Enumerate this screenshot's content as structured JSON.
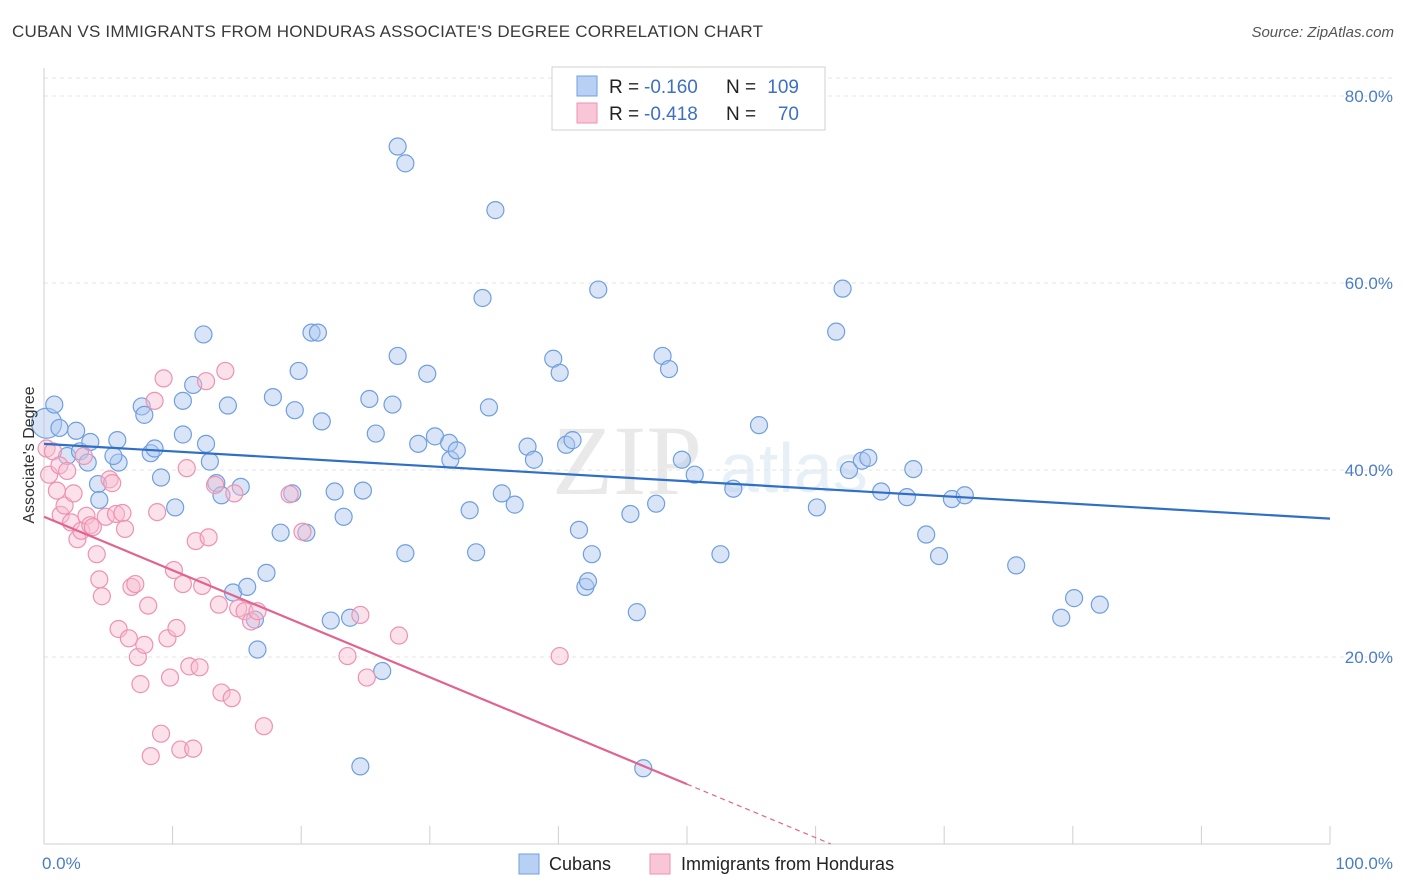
{
  "header": {
    "title": "CUBAN VS IMMIGRANTS FROM HONDURAS ASSOCIATE'S DEGREE CORRELATION CHART",
    "source": "Source: ZipAtlas.com"
  },
  "watermark": {
    "zip": "ZIP",
    "atlas": "atlas"
  },
  "legend": {
    "r_label": "R =",
    "n_label": "N =",
    "rows": [
      {
        "r": "-0.160",
        "n": "109"
      },
      {
        "r": "-0.418",
        "n": "70"
      }
    ]
  },
  "chart_data": {
    "type": "scatter",
    "title": "CUBAN VS IMMIGRANTS FROM HONDURAS ASSOCIATE'S DEGREE CORRELATION CHART",
    "ylabel": "Associate's Degree",
    "xlabel": "",
    "xlim": [
      0,
      100
    ],
    "ylim": [
      0,
      83
    ],
    "x_tick_labels": [
      "0.0%",
      "100.0%"
    ],
    "y_ticks": [
      20,
      40,
      60,
      80
    ],
    "y_tick_labels": [
      "20.0%",
      "40.0%",
      "60.0%",
      "80.0%"
    ],
    "grid": true,
    "legend_position": "top-center",
    "colors": {
      "cubans": "#6f9fe0",
      "honduras": "#ef92b1",
      "cubans_line": "#2f6fc7",
      "honduras_line": "#e0648f"
    },
    "series": [
      {
        "name": "Cubans",
        "trend": {
          "x": [
            0,
            100
          ],
          "y": [
            42.8,
            34.8
          ]
        },
        "points": [
          [
            0.2,
            45
          ],
          [
            0.8,
            47
          ],
          [
            1.2,
            44.5
          ],
          [
            1.8,
            41.5
          ],
          [
            2.5,
            44.2
          ],
          [
            2.8,
            42
          ],
          [
            3.4,
            40.8
          ],
          [
            3.6,
            43
          ],
          [
            4.2,
            38.5
          ],
          [
            4.3,
            36.8
          ],
          [
            5.8,
            40.8
          ],
          [
            5.4,
            41.5
          ],
          [
            5.7,
            43.2
          ],
          [
            7.6,
            46.8
          ],
          [
            7.8,
            45.9
          ],
          [
            8.3,
            41.8
          ],
          [
            8.6,
            42.3
          ],
          [
            9.1,
            39.2
          ],
          [
            10.2,
            36
          ],
          [
            10.8,
            47.4
          ],
          [
            10.8,
            43.8
          ],
          [
            11.6,
            49.1
          ],
          [
            12.4,
            54.5
          ],
          [
            12.6,
            42.8
          ],
          [
            12.9,
            40.9
          ],
          [
            13.4,
            38.6
          ],
          [
            13.8,
            37.3
          ],
          [
            14.3,
            46.9
          ],
          [
            14.7,
            26.9
          ],
          [
            15.3,
            38.2
          ],
          [
            15.8,
            27.5
          ],
          [
            16.4,
            24
          ],
          [
            16.6,
            20.8
          ],
          [
            17.3,
            29
          ],
          [
            17.8,
            47.8
          ],
          [
            18.4,
            33.3
          ],
          [
            19.3,
            37.5
          ],
          [
            19.5,
            46.4
          ],
          [
            19.8,
            50.6
          ],
          [
            20.4,
            33.3
          ],
          [
            20.8,
            54.7
          ],
          [
            21.3,
            54.7
          ],
          [
            21.6,
            45.2
          ],
          [
            22.3,
            23.9
          ],
          [
            22.6,
            37.7
          ],
          [
            23.3,
            35
          ],
          [
            23.8,
            24.2
          ],
          [
            24.6,
            8.3
          ],
          [
            24.8,
            37.8
          ],
          [
            25.3,
            47.6
          ],
          [
            25.8,
            43.9
          ],
          [
            26.3,
            18.5
          ],
          [
            27.1,
            47
          ],
          [
            27.5,
            52.2
          ],
          [
            28.1,
            31.1
          ],
          [
            29.1,
            42.8
          ],
          [
            29.8,
            50.3
          ],
          [
            30.4,
            43.6
          ],
          [
            31.5,
            42.9
          ],
          [
            31.6,
            41.1
          ],
          [
            32.1,
            42.1
          ],
          [
            33.1,
            35.7
          ],
          [
            33.6,
            31.2
          ],
          [
            34.1,
            58.4
          ],
          [
            34.6,
            46.7
          ],
          [
            35.1,
            67.8
          ],
          [
            35.6,
            37.5
          ],
          [
            36.6,
            36.3
          ],
          [
            37.6,
            42.5
          ],
          [
            38.1,
            41.1
          ],
          [
            39.6,
            51.9
          ],
          [
            40.1,
            50.4
          ],
          [
            40.6,
            42.7
          ],
          [
            41.1,
            43.2
          ],
          [
            41.6,
            33.6
          ],
          [
            42.1,
            27.5
          ],
          [
            42.3,
            28.1
          ],
          [
            42.6,
            31
          ],
          [
            43.1,
            59.3
          ],
          [
            45.6,
            35.3
          ],
          [
            46.1,
            24.8
          ],
          [
            46.6,
            8.1
          ],
          [
            47.6,
            36.4
          ],
          [
            48.1,
            52.2
          ],
          [
            48.6,
            50.8
          ],
          [
            49.6,
            41.1
          ],
          [
            50.6,
            39.5
          ],
          [
            52.6,
            31
          ],
          [
            53.6,
            38
          ],
          [
            55.6,
            44.8
          ],
          [
            60.1,
            36
          ],
          [
            61.6,
            54.8
          ],
          [
            62.1,
            59.4
          ],
          [
            62.6,
            40
          ],
          [
            63.6,
            41
          ],
          [
            64.1,
            41.3
          ],
          [
            65.1,
            37.7
          ],
          [
            67.1,
            37.1
          ],
          [
            67.6,
            40.1
          ],
          [
            68.6,
            33.1
          ],
          [
            69.6,
            30.8
          ],
          [
            70.6,
            36.9
          ],
          [
            71.6,
            37.3
          ],
          [
            75.6,
            29.8
          ],
          [
            79.1,
            24.2
          ],
          [
            80.1,
            26.3
          ],
          [
            82.1,
            25.6
          ],
          [
            27.5,
            74.6
          ],
          [
            28.1,
            72.8
          ]
        ]
      },
      {
        "name": "Immigrants from Honduras",
        "trend": {
          "x": [
            0,
            50
          ],
          "y": [
            35,
            6.4
          ]
        },
        "points": [
          [
            0.2,
            42.3
          ],
          [
            0.4,
            39.5
          ],
          [
            0.7,
            42
          ],
          [
            1,
            37.8
          ],
          [
            1.2,
            40.5
          ],
          [
            1.3,
            35.2
          ],
          [
            1.6,
            36.2
          ],
          [
            1.8,
            39.9
          ],
          [
            2.1,
            34.4
          ],
          [
            2.3,
            37.5
          ],
          [
            2.6,
            32.6
          ],
          [
            2.9,
            33.5
          ],
          [
            3.1,
            41.5
          ],
          [
            3.3,
            35.1
          ],
          [
            3.6,
            34.1
          ],
          [
            3.8,
            33.9
          ],
          [
            4.1,
            31
          ],
          [
            4.3,
            28.3
          ],
          [
            4.5,
            26.5
          ],
          [
            4.8,
            35
          ],
          [
            5.1,
            39
          ],
          [
            5.3,
            38.6
          ],
          [
            5.6,
            35.3
          ],
          [
            5.8,
            23
          ],
          [
            6.1,
            35.4
          ],
          [
            6.3,
            33.7
          ],
          [
            6.6,
            22
          ],
          [
            6.8,
            27.5
          ],
          [
            7.1,
            27.8
          ],
          [
            7.3,
            20
          ],
          [
            7.5,
            17.1
          ],
          [
            7.8,
            21.3
          ],
          [
            8.1,
            25.5
          ],
          [
            8.3,
            9.4
          ],
          [
            8.6,
            47.4
          ],
          [
            8.8,
            35.5
          ],
          [
            9.1,
            11.8
          ],
          [
            9.3,
            49.8
          ],
          [
            9.6,
            22
          ],
          [
            9.8,
            17.8
          ],
          [
            10.1,
            29.3
          ],
          [
            10.3,
            23.1
          ],
          [
            10.6,
            10.1
          ],
          [
            10.8,
            27.8
          ],
          [
            11.1,
            40.2
          ],
          [
            11.3,
            19
          ],
          [
            11.6,
            10.2
          ],
          [
            11.8,
            32.4
          ],
          [
            12.1,
            18.9
          ],
          [
            12.3,
            27.6
          ],
          [
            12.6,
            49.5
          ],
          [
            12.8,
            32.8
          ],
          [
            13.3,
            38.4
          ],
          [
            13.6,
            25.6
          ],
          [
            13.8,
            16.2
          ],
          [
            14.1,
            50.6
          ],
          [
            14.6,
            15.6
          ],
          [
            14.8,
            37.5
          ],
          [
            15.1,
            25.2
          ],
          [
            15.6,
            24.9
          ],
          [
            16.1,
            23.8
          ],
          [
            16.6,
            24.9
          ],
          [
            17.1,
            12.6
          ],
          [
            19.1,
            37.4
          ],
          [
            20.1,
            33.4
          ],
          [
            23.6,
            20.1
          ],
          [
            24.6,
            24.5
          ],
          [
            25.1,
            17.8
          ],
          [
            27.6,
            22.3
          ],
          [
            40.1,
            20.1
          ]
        ]
      }
    ]
  },
  "bottom_legend": [
    "Cubans",
    "Immigrants from Honduras"
  ]
}
